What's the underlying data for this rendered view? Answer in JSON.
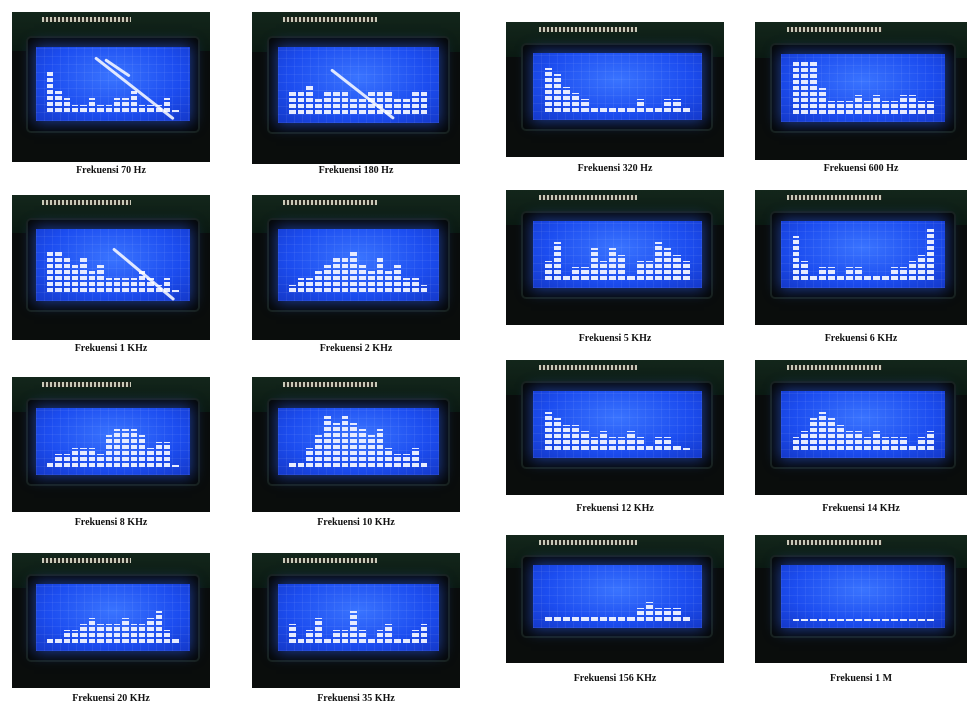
{
  "panels": [
    {
      "id": "p1",
      "caption": "Frekuensi 70 Hz",
      "bars": [
        6,
        3,
        2,
        1,
        1,
        2,
        1,
        1,
        2,
        2,
        3,
        1,
        1,
        1,
        2,
        0
      ]
    },
    {
      "id": "p2",
      "caption": "Frekuensi 180 Hz",
      "bars": [
        3,
        3,
        4,
        2,
        3,
        3,
        3,
        2,
        2,
        3,
        3,
        3,
        2,
        2,
        3,
        3
      ]
    },
    {
      "id": "p3",
      "caption": "Frekuensi 320 Hz",
      "bars": [
        7,
        6,
        4,
        3,
        2,
        1,
        1,
        1,
        1,
        1,
        2,
        1,
        1,
        2,
        2,
        1
      ]
    },
    {
      "id": "p4",
      "caption": "Frekuensi 600 Hz",
      "bars": [
        8,
        8,
        8,
        4,
        2,
        2,
        2,
        3,
        2,
        3,
        2,
        2,
        3,
        3,
        2,
        2
      ]
    },
    {
      "id": "p5",
      "caption": "Frekuensi 1 KHz",
      "bars": [
        6,
        6,
        5,
        4,
        5,
        3,
        4,
        2,
        2,
        2,
        2,
        3,
        2,
        1,
        2,
        0
      ]
    },
    {
      "id": "p6",
      "caption": "Frekuensi 2 KHz",
      "bars": [
        1,
        2,
        2,
        3,
        4,
        5,
        5,
        6,
        4,
        3,
        5,
        3,
        4,
        2,
        2,
        1
      ]
    },
    {
      "id": "p7",
      "caption": "Frekuensi 5 KHz",
      "bars": [
        3,
        6,
        1,
        2,
        2,
        5,
        3,
        5,
        4,
        1,
        3,
        3,
        6,
        5,
        4,
        3
      ]
    },
    {
      "id": "p8",
      "caption": "Frekuensi 6 KHz",
      "bars": [
        7,
        3,
        1,
        2,
        2,
        1,
        2,
        2,
        1,
        1,
        1,
        2,
        2,
        3,
        4,
        8
      ]
    },
    {
      "id": "p9",
      "caption": "Frekuensi 8 KHz",
      "bars": [
        1,
        2,
        2,
        3,
        3,
        3,
        2,
        5,
        6,
        6,
        6,
        5,
        3,
        4,
        4,
        0
      ]
    },
    {
      "id": "p10",
      "caption": "Frekuensi 10 KHz",
      "bars": [
        1,
        1,
        3,
        5,
        8,
        7,
        8,
        7,
        6,
        5,
        6,
        3,
        2,
        2,
        3,
        1
      ]
    },
    {
      "id": "p11",
      "caption": "Frekuensi 12 KHz",
      "bars": [
        6,
        5,
        4,
        4,
        3,
        2,
        3,
        2,
        2,
        3,
        2,
        1,
        2,
        2,
        1,
        0
      ]
    },
    {
      "id": "p12",
      "caption": "Frekuensi 14 KHz",
      "bars": [
        2,
        3,
        5,
        6,
        5,
        4,
        3,
        3,
        2,
        3,
        2,
        2,
        2,
        1,
        2,
        3
      ]
    },
    {
      "id": "p13",
      "caption": "Frekuensi 20 KHz",
      "bars": [
        1,
        1,
        2,
        2,
        3,
        4,
        3,
        3,
        3,
        4,
        3,
        3,
        4,
        5,
        2,
        1
      ]
    },
    {
      "id": "p14",
      "caption": "Frekuensi 35 KHz",
      "bars": [
        3,
        1,
        2,
        4,
        1,
        2,
        2,
        5,
        2,
        1,
        2,
        3,
        1,
        1,
        2,
        3
      ]
    },
    {
      "id": "p15",
      "caption": "Frekuensi 156 KHz",
      "bars": [
        1,
        1,
        1,
        1,
        1,
        1,
        1,
        1,
        1,
        1,
        2,
        3,
        2,
        2,
        2,
        1
      ]
    },
    {
      "id": "p16",
      "caption": "Frekuensi 1 M",
      "bars": [
        0,
        0,
        0,
        0,
        0,
        0,
        0,
        0,
        0,
        0,
        0,
        0,
        0,
        0,
        0,
        0
      ]
    }
  ]
}
